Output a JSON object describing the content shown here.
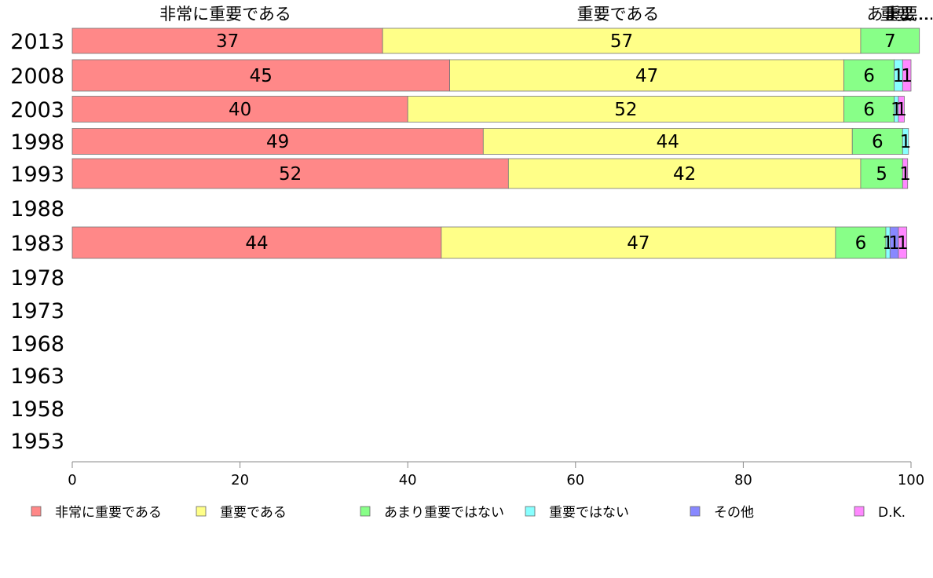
{
  "chart_data": {
    "type": "bar",
    "orientation": "horizontal",
    "stacked": true,
    "categories": [
      "2013",
      "2008",
      "2003",
      "1998",
      "1993",
      "1988",
      "1983",
      "1978",
      "1973",
      "1968",
      "1963",
      "1958",
      "1953"
    ],
    "series": [
      {
        "name": "非常に重要である",
        "color": "#ff8888",
        "values": [
          37,
          45,
          40,
          49,
          52,
          null,
          44,
          null,
          null,
          null,
          null,
          null,
          null
        ],
        "labels": [
          "37",
          "45",
          "40",
          "49",
          "52",
          "",
          "44",
          "",
          "",
          "",
          "",
          "",
          ""
        ]
      },
      {
        "name": "重要である",
        "color": "#ffff88",
        "values": [
          57,
          47,
          52,
          44,
          42,
          null,
          47,
          null,
          null,
          null,
          null,
          null,
          null
        ],
        "labels": [
          "57",
          "47",
          "52",
          "44",
          "42",
          "",
          "47",
          "",
          "",
          "",
          "",
          "",
          ""
        ]
      },
      {
        "name": "あまり重要ではない",
        "color": "#88ff88",
        "values": [
          7,
          6,
          6,
          6,
          5,
          null,
          6,
          null,
          null,
          null,
          null,
          null,
          null
        ],
        "labels": [
          "7",
          "6",
          "6",
          "6",
          "5",
          "",
          "6",
          "",
          "",
          "",
          "",
          "",
          ""
        ]
      },
      {
        "name": "重要ではない",
        "color": "#88ffff",
        "values": [
          0,
          1,
          0.5,
          0.7,
          0,
          null,
          0.5,
          null,
          null,
          null,
          null,
          null,
          null
        ],
        "labels": [
          "",
          "1",
          "1",
          "1",
          "",
          "",
          "1",
          "",
          "",
          "",
          "",
          "",
          ""
        ]
      },
      {
        "name": "その他",
        "color": "#8888ff",
        "values": [
          0,
          0,
          0,
          0,
          0,
          null,
          1,
          null,
          null,
          null,
          null,
          null,
          null
        ],
        "labels": [
          "",
          "",
          "",
          "",
          "",
          "",
          "1",
          "",
          "",
          "",
          "",
          "",
          ""
        ]
      },
      {
        "name": "D.K.",
        "color": "#ff88ff",
        "values": [
          0,
          1,
          0.7,
          0,
          0.6,
          null,
          1,
          null,
          null,
          null,
          null,
          null,
          null
        ],
        "labels": [
          "",
          "1",
          "1",
          "",
          "1",
          "",
          "1",
          "",
          "",
          "",
          "",
          "",
          ""
        ]
      }
    ],
    "top_labels": [
      "非常に重要である",
      "重要である",
      "あま…",
      "重要…",
      "重要…"
    ],
    "xlim": [
      0,
      100
    ],
    "xticks": [
      "0",
      "20",
      "40",
      "60",
      "80",
      "100"
    ],
    "legend": {
      "placement": "bottom",
      "entries": [
        "非常に重要である",
        "重要である",
        "あまり重要ではない",
        "重要ではない",
        "その他",
        "D.K."
      ]
    },
    "grid": false
  }
}
